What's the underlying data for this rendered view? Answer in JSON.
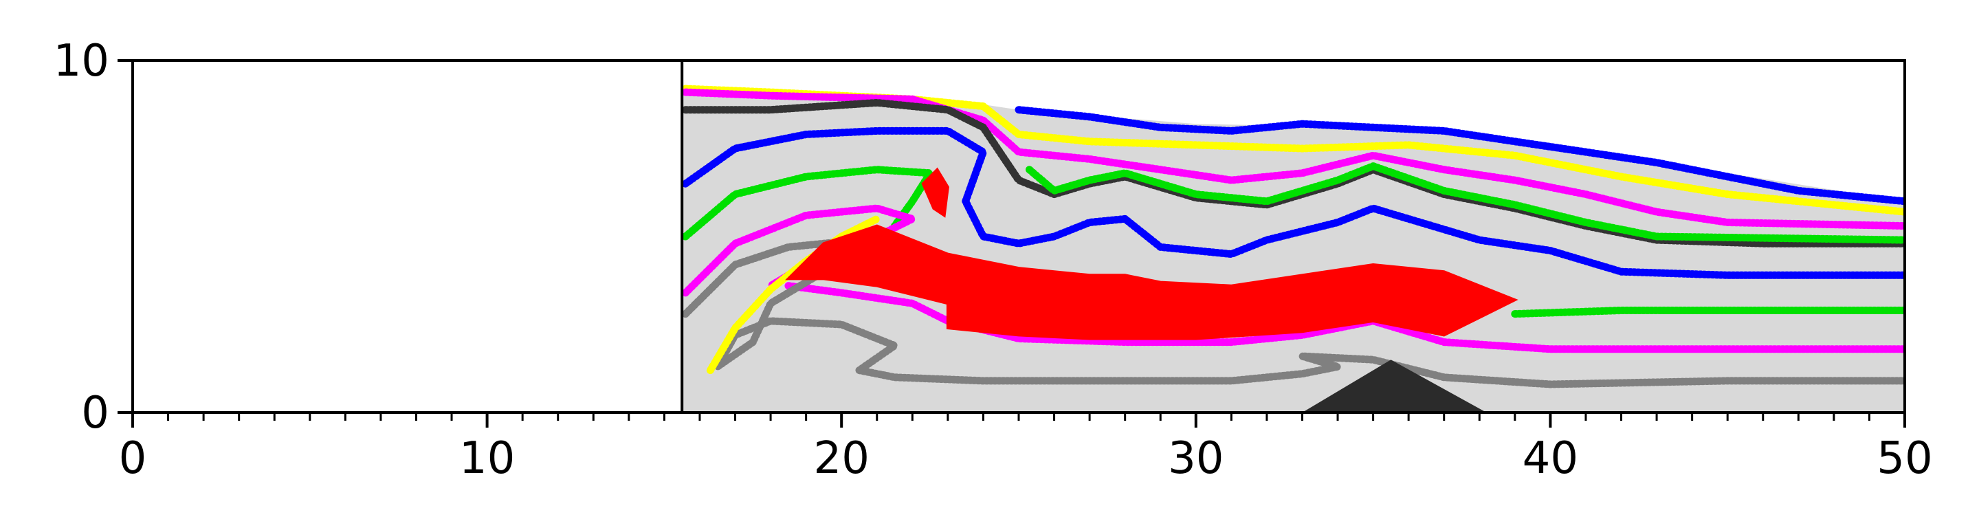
{
  "chart_data": {
    "type": "scatter",
    "title": "",
    "xlabel": "",
    "ylabel": "",
    "xlim": [
      0,
      50
    ],
    "ylim": [
      0,
      10
    ],
    "x_major_ticks": [
      0,
      10,
      20,
      30,
      40,
      50
    ],
    "x_minor_step": 1,
    "y_ticks": [
      0,
      10
    ],
    "x_tick_labels": [
      "0",
      "10",
      "20",
      "30",
      "40",
      "50"
    ],
    "y_tick_labels": [
      "0",
      "10"
    ],
    "grid": false,
    "backstop_x": 15.5,
    "background_fill": {
      "color": "#d9d9d9",
      "top": [
        [
          15.5,
          9.2
        ],
        [
          20,
          9.1
        ],
        [
          23,
          8.9
        ],
        [
          25,
          8.6
        ],
        [
          30,
          8.2
        ],
        [
          35,
          8.1
        ],
        [
          40,
          7.6
        ],
        [
          45,
          6.8
        ],
        [
          50,
          6.0
        ]
      ]
    },
    "obstacle": {
      "color": "#2b2b2b",
      "points": [
        [
          33.0,
          0
        ],
        [
          35.5,
          1.5
        ],
        [
          38.2,
          0
        ]
      ]
    },
    "layers": [
      {
        "color": "#0000ff",
        "points": [
          [
            25,
            8.6
          ],
          [
            27,
            8.4
          ],
          [
            29,
            8.1
          ],
          [
            31,
            8.0
          ],
          [
            33,
            8.2
          ],
          [
            35,
            8.1
          ],
          [
            37,
            8.0
          ],
          [
            39,
            7.7
          ],
          [
            41,
            7.4
          ],
          [
            43,
            7.1
          ],
          [
            45,
            6.7
          ],
          [
            47,
            6.3
          ],
          [
            50,
            6.0
          ]
        ]
      },
      {
        "color": "#ffff00",
        "points": [
          [
            15.6,
            9.2
          ],
          [
            18,
            9.1
          ],
          [
            22,
            8.9
          ],
          [
            24,
            8.7
          ],
          [
            25,
            7.9
          ],
          [
            27,
            7.7
          ],
          [
            30,
            7.6
          ],
          [
            33,
            7.5
          ],
          [
            36,
            7.6
          ],
          [
            39,
            7.3
          ],
          [
            42,
            6.7
          ],
          [
            45,
            6.2
          ],
          [
            50,
            5.7
          ]
        ]
      },
      {
        "color": "#ff00ff",
        "points": [
          [
            15.6,
            9.1
          ],
          [
            18,
            9.0
          ],
          [
            22,
            8.9
          ],
          [
            24,
            8.3
          ],
          [
            25,
            7.4
          ],
          [
            27,
            7.2
          ],
          [
            29,
            6.9
          ],
          [
            31,
            6.6
          ],
          [
            33,
            6.8
          ],
          [
            35,
            7.3
          ],
          [
            37,
            6.9
          ],
          [
            39,
            6.6
          ],
          [
            41,
            6.2
          ],
          [
            43,
            5.7
          ],
          [
            45,
            5.4
          ],
          [
            50,
            5.3
          ]
        ]
      },
      {
        "color": "#333333",
        "points": [
          [
            15.6,
            8.6
          ],
          [
            18,
            8.6
          ],
          [
            21,
            8.8
          ],
          [
            23,
            8.6
          ],
          [
            24,
            8.1
          ],
          [
            25,
            6.6
          ],
          [
            26,
            6.2
          ],
          [
            27,
            6.5
          ],
          [
            28,
            6.7
          ],
          [
            30,
            6.1
          ],
          [
            32,
            5.9
          ],
          [
            34,
            6.5
          ],
          [
            35,
            6.9
          ],
          [
            37,
            6.2
          ],
          [
            39,
            5.8
          ],
          [
            41,
            5.3
          ],
          [
            43,
            4.9
          ],
          [
            46,
            4.8
          ],
          [
            50,
            4.8
          ]
        ]
      },
      {
        "color": "#00e000",
        "points": [
          [
            25.3,
            6.9
          ],
          [
            26,
            6.3
          ],
          [
            27,
            6.6
          ],
          [
            28,
            6.8
          ],
          [
            30,
            6.2
          ],
          [
            32,
            6.0
          ],
          [
            34,
            6.6
          ],
          [
            35,
            7.0
          ],
          [
            37,
            6.3
          ],
          [
            39,
            5.9
          ],
          [
            41,
            5.4
          ],
          [
            43,
            5.0
          ],
          [
            50,
            4.9
          ]
        ]
      },
      {
        "color": "#0000ff",
        "points": [
          [
            15.6,
            6.5
          ],
          [
            17,
            7.5
          ],
          [
            19,
            7.9
          ],
          [
            21,
            8.0
          ],
          [
            23,
            8.0
          ],
          [
            24,
            7.4
          ],
          [
            23.5,
            6.0
          ],
          [
            24,
            5.0
          ],
          [
            25,
            4.8
          ],
          [
            26,
            5.0
          ],
          [
            27,
            5.4
          ],
          [
            28,
            5.5
          ],
          [
            29,
            4.7
          ],
          [
            30,
            4.6
          ],
          [
            31,
            4.5
          ],
          [
            32,
            4.9
          ],
          [
            34,
            5.4
          ],
          [
            35,
            5.8
          ],
          [
            36,
            5.5
          ],
          [
            38,
            4.9
          ],
          [
            40,
            4.6
          ],
          [
            42,
            4.0
          ],
          [
            45,
            3.9
          ],
          [
            50,
            3.9
          ]
        ]
      },
      {
        "color": "#00e000",
        "points": [
          [
            15.6,
            5.0
          ],
          [
            17,
            6.2
          ],
          [
            19,
            6.7
          ],
          [
            21,
            6.9
          ],
          [
            22.5,
            6.8
          ],
          [
            22.0,
            6.0
          ],
          [
            21.5,
            5.3
          ]
        ]
      },
      {
        "color": "#00e000",
        "points": [
          [
            39,
            2.8
          ],
          [
            42,
            2.9
          ],
          [
            46,
            2.9
          ],
          [
            50,
            2.9
          ]
        ]
      },
      {
        "color": "#ff00ff",
        "points": [
          [
            15.6,
            3.4
          ],
          [
            17,
            4.8
          ],
          [
            19,
            5.6
          ],
          [
            21,
            5.8
          ],
          [
            22,
            5.5
          ],
          [
            21,
            5.0
          ],
          [
            19,
            4.2
          ],
          [
            18,
            3.6
          ]
        ]
      },
      {
        "color": "#ff00ff",
        "points": [
          [
            18.5,
            3.6
          ],
          [
            20,
            3.4
          ],
          [
            22,
            3.1
          ],
          [
            23,
            2.6
          ],
          [
            25,
            2.1
          ],
          [
            28,
            2.0
          ],
          [
            31,
            2.0
          ],
          [
            33,
            2.2
          ],
          [
            35,
            2.6
          ],
          [
            37,
            2.0
          ],
          [
            40,
            1.8
          ],
          [
            45,
            1.8
          ],
          [
            50,
            1.8
          ]
        ]
      },
      {
        "color": "#808080",
        "points": [
          [
            15.6,
            2.8
          ],
          [
            17,
            4.2
          ],
          [
            18.5,
            4.7
          ],
          [
            20.5,
            4.9
          ],
          [
            21.5,
            4.6
          ],
          [
            19.5,
            4.0
          ],
          [
            18,
            3.1
          ],
          [
            17.5,
            2.0
          ],
          [
            16.5,
            1.3
          ],
          [
            17,
            2.2
          ],
          [
            18,
            2.6
          ],
          [
            20,
            2.5
          ],
          [
            21.5,
            1.9
          ],
          [
            20.5,
            1.2
          ],
          [
            21.5,
            1.0
          ],
          [
            24,
            0.9
          ],
          [
            28,
            0.9
          ],
          [
            31,
            0.9
          ],
          [
            33,
            1.1
          ],
          [
            34,
            1.3
          ],
          [
            33,
            1.6
          ],
          [
            35,
            1.5
          ],
          [
            37,
            1.0
          ],
          [
            40,
            0.8
          ],
          [
            45,
            0.9
          ],
          [
            50,
            0.9
          ]
        ]
      },
      {
        "color": "#ffff00",
        "points": [
          [
            16.3,
            1.2
          ],
          [
            17,
            2.4
          ],
          [
            18,
            3.5
          ],
          [
            19,
            4.3
          ],
          [
            20,
            5.0
          ],
          [
            21,
            5.5
          ]
        ]
      }
    ],
    "blobs": [
      {
        "color": "#ff0000",
        "points": [
          [
            18.5,
            3.8
          ],
          [
            19.5,
            4.8
          ],
          [
            21,
            5.3
          ],
          [
            23,
            4.5
          ],
          [
            24,
            4.3
          ],
          [
            25,
            4.1
          ],
          [
            26,
            4.0
          ],
          [
            27,
            3.9
          ],
          [
            28,
            3.9
          ],
          [
            29,
            3.7
          ],
          [
            31,
            3.6
          ],
          [
            33,
            3.9
          ],
          [
            35,
            4.2
          ],
          [
            37,
            4.0
          ],
          [
            39,
            3.2
          ],
          [
            38,
            2.7
          ],
          [
            37,
            2.2
          ],
          [
            35,
            2.6
          ],
          [
            33,
            2.3
          ],
          [
            30,
            2.1
          ],
          [
            27,
            2.1
          ],
          [
            25,
            2.2
          ],
          [
            23,
            2.4
          ],
          [
            23,
            3.1
          ],
          [
            21,
            3.6
          ],
          [
            19.5,
            3.8
          ]
        ]
      },
      {
        "color": "#ff0000",
        "points": [
          [
            22.6,
            5.8
          ],
          [
            22.3,
            6.5
          ],
          [
            22.7,
            6.9
          ],
          [
            23.0,
            6.4
          ],
          [
            22.9,
            5.6
          ]
        ]
      }
    ]
  }
}
